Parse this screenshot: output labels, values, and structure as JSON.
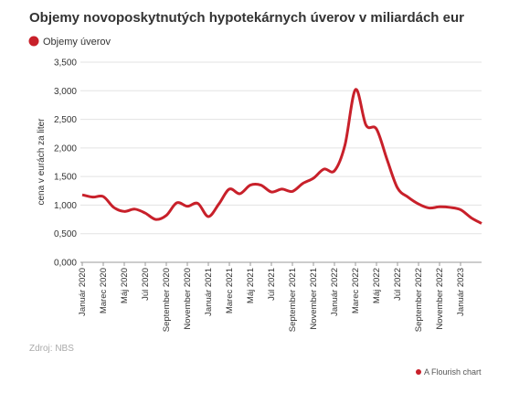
{
  "chart_data": {
    "type": "line",
    "title": "Objemy novoposkytnutých hypotekárnych úverov v miliardách eur",
    "y_label": "cena v eurách za liter",
    "source": "Zdroj: NBS",
    "credit": "A Flourish chart",
    "categories": [
      "Január 2020",
      null,
      "Marec 2020",
      null,
      "Máj 2020",
      null,
      "Júl 2020",
      null,
      "September 2020",
      null,
      "November 2020",
      null,
      "Január 2021",
      null,
      "Marec 2021",
      null,
      "Máj 2021",
      null,
      "Júl 2021",
      null,
      "September 2021",
      null,
      "November 2021",
      null,
      "Január 2022",
      null,
      "Marec 2022",
      null,
      "Máj 2022",
      null,
      "Júl 2022",
      null,
      "September 2022",
      null,
      "November 2022",
      null,
      "Január 2023",
      null,
      null
    ],
    "series": [
      {
        "name": "Objemy úverov",
        "color": "#c8202a",
        "values": [
          1.18,
          1.14,
          1.15,
          0.96,
          0.89,
          0.93,
          0.86,
          0.75,
          0.82,
          1.04,
          0.98,
          1.03,
          0.8,
          1.02,
          1.28,
          1.2,
          1.35,
          1.35,
          1.23,
          1.28,
          1.24,
          1.38,
          1.47,
          1.63,
          1.6,
          2.05,
          3.02,
          2.4,
          2.33,
          1.8,
          1.3,
          1.14,
          1.02,
          0.95,
          0.97,
          0.96,
          0.92,
          0.78,
          0.68
        ]
      }
    ],
    "ylim": [
      0,
      3.5
    ],
    "yticks": [
      {
        "value": 0,
        "label": "0,000"
      },
      {
        "value": 0.5,
        "label": "0,500"
      },
      {
        "value": 1,
        "label": "1,000"
      },
      {
        "value": 1.5,
        "label": "1,500"
      },
      {
        "value": 2,
        "label": "2,000"
      },
      {
        "value": 2.5,
        "label": "2,500"
      },
      {
        "value": 3,
        "label": "3,000"
      },
      {
        "value": 3.5,
        "label": "3,500"
      }
    ],
    "grid": true
  }
}
